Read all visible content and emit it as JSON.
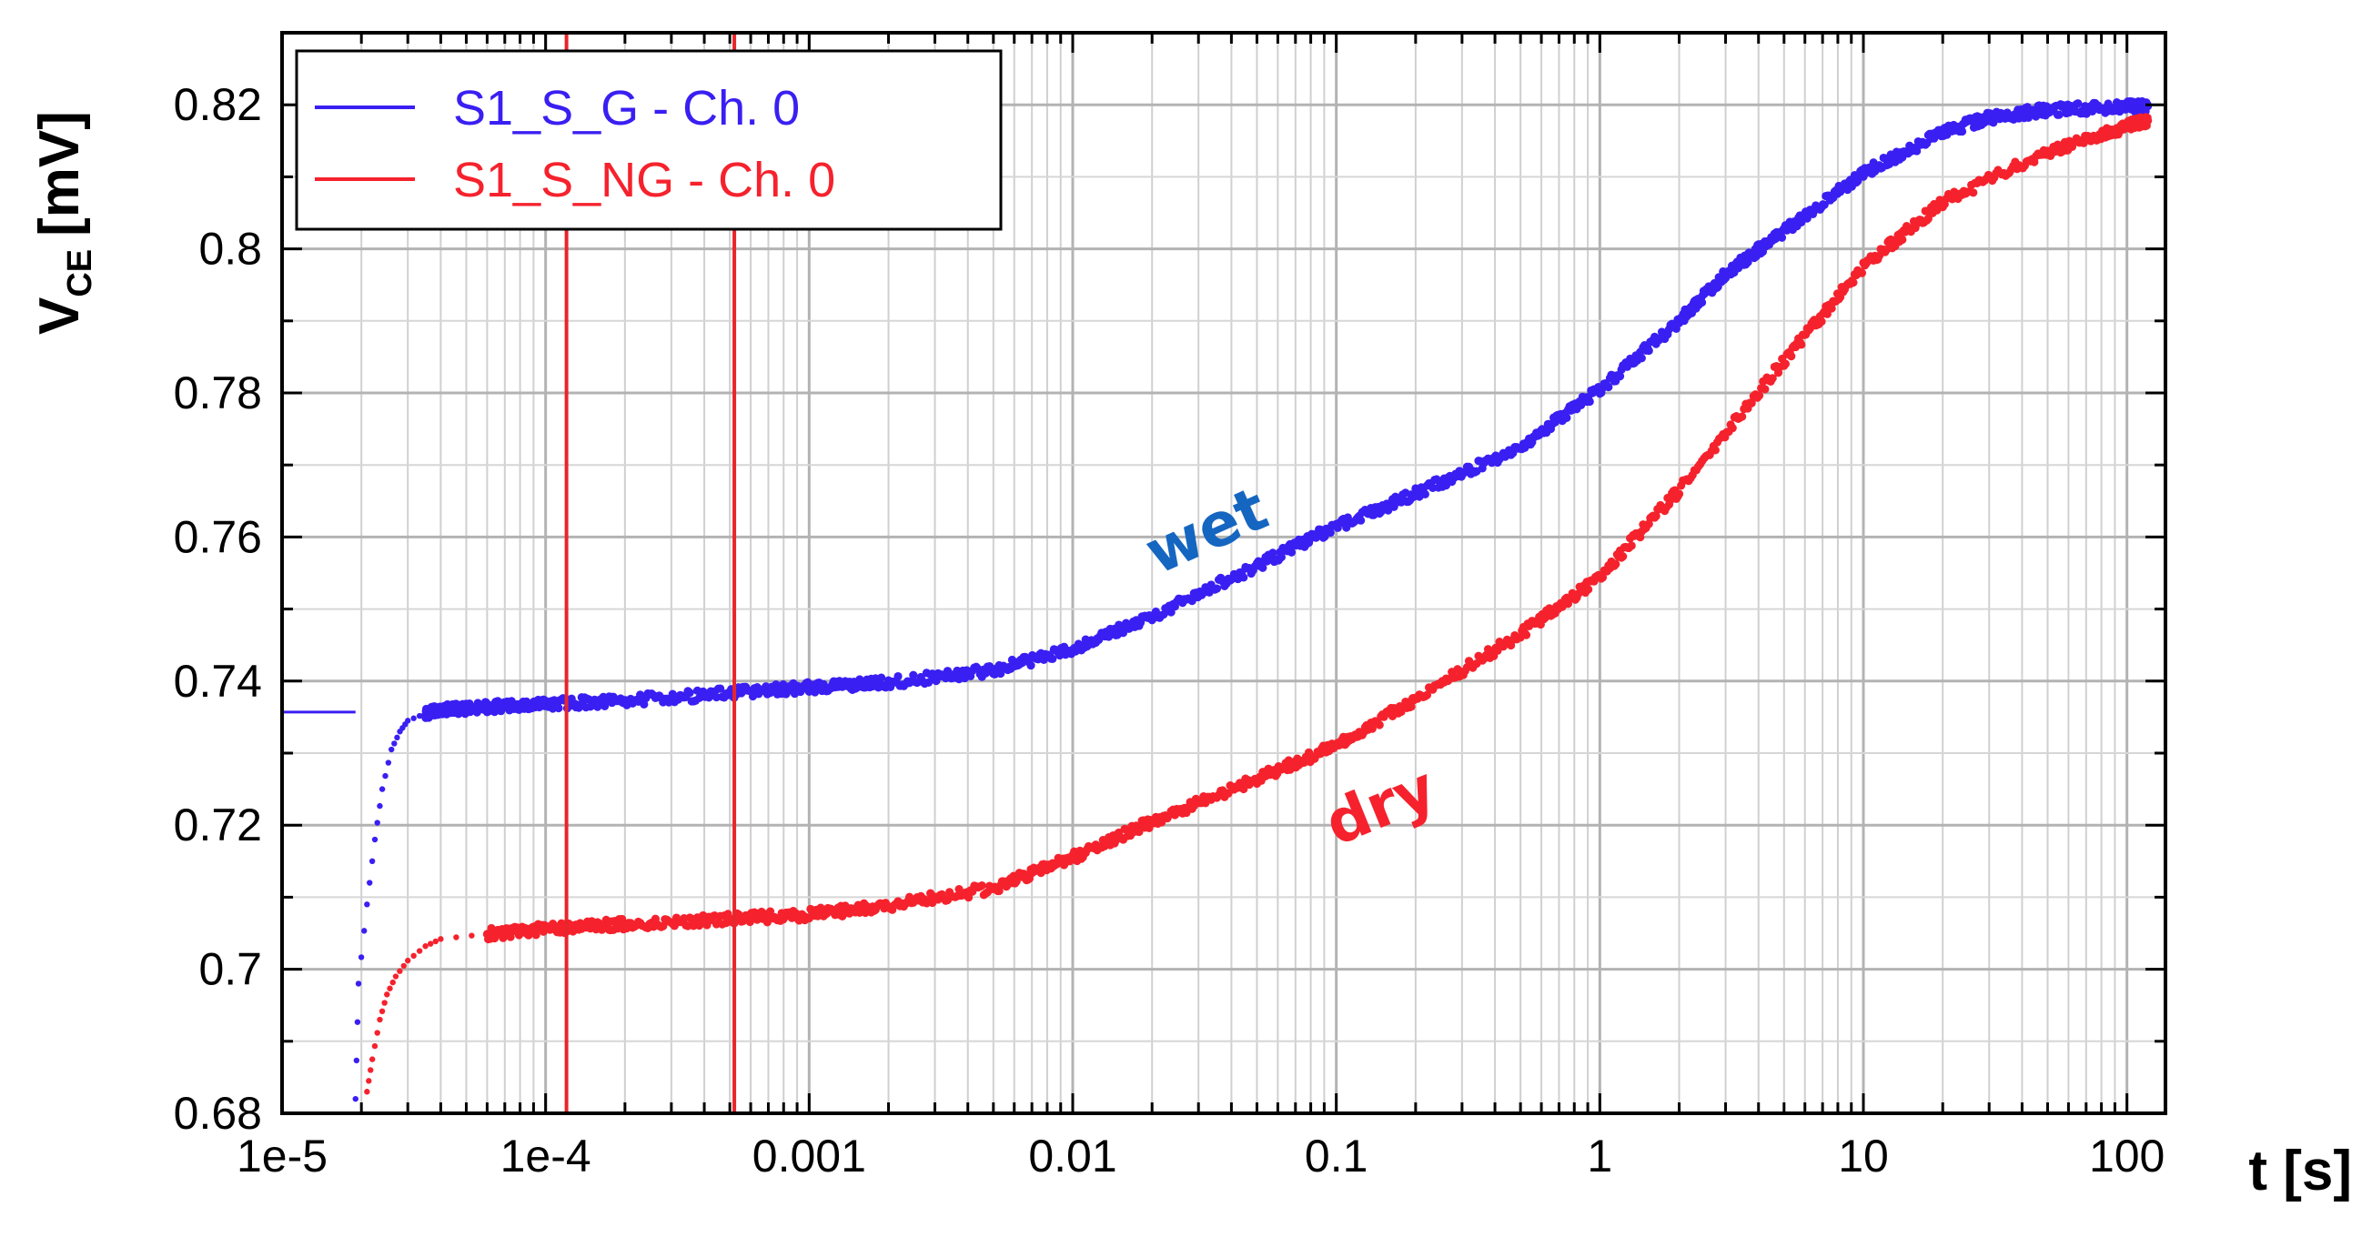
{
  "chart_data": {
    "type": "scatter",
    "title": "",
    "xlabel": "t [s]",
    "ylabel_main": "V",
    "ylabel_sub": "CE",
    "ylabel_unit": "[mV]",
    "x_scale": "log",
    "xlim": [
      1e-05,
      140
    ],
    "ylim": [
      0.68,
      0.83
    ],
    "grid": true,
    "legend_position": "top-left",
    "x_ticks": [
      {
        "value": 1e-05,
        "label": "1e-5"
      },
      {
        "value": 0.0001,
        "label": "1e-4"
      },
      {
        "value": 0.001,
        "label": "0.001"
      },
      {
        "value": 0.01,
        "label": "0.01"
      },
      {
        "value": 0.1,
        "label": "0.1"
      },
      {
        "value": 1,
        "label": "1"
      },
      {
        "value": 10,
        "label": "10"
      },
      {
        "value": 100,
        "label": "100"
      }
    ],
    "y_ticks": [
      {
        "value": 0.68,
        "label": "0.68"
      },
      {
        "value": 0.7,
        "label": "0.7"
      },
      {
        "value": 0.72,
        "label": "0.72"
      },
      {
        "value": 0.74,
        "label": "0.74"
      },
      {
        "value": 0.76,
        "label": "0.76"
      },
      {
        "value": 0.78,
        "label": "0.78"
      },
      {
        "value": 0.8,
        "label": "0.8"
      },
      {
        "value": 0.82,
        "label": "0.82"
      }
    ],
    "vertical_markers": [
      {
        "x": 0.00012,
        "color": "#e8262b"
      },
      {
        "x": 0.00052,
        "color": "#e8262b"
      }
    ],
    "series": [
      {
        "name": "S1_S_G - Ch. 0",
        "color": "#3a1ff2",
        "annotation": "wet",
        "annotation_color": "#1566c0",
        "flat_segment": {
          "x": [
            1e-05,
            1.9e-05
          ],
          "y": 0.7357
        },
        "points": [
          [
            1.9e-05,
            0.682
          ],
          [
            1.95e-05,
            0.698
          ],
          [
            2.1e-05,
            0.709
          ],
          [
            2.25e-05,
            0.718
          ],
          [
            2.4e-05,
            0.725
          ],
          [
            2.6e-05,
            0.7305
          ],
          [
            2.8e-05,
            0.733
          ],
          [
            3e-05,
            0.7345
          ],
          [
            3.5e-05,
            0.7355
          ],
          [
            4e-05,
            0.736
          ],
          [
            6e-05,
            0.7364
          ],
          [
            0.0001,
            0.7368
          ],
          [
            0.0002,
            0.7373
          ],
          [
            0.0005,
            0.7383
          ],
          [
            0.001,
            0.7391
          ],
          [
            0.002,
            0.7398
          ],
          [
            0.005,
            0.7415
          ],
          [
            0.01,
            0.7445
          ],
          [
            0.02,
            0.749
          ],
          [
            0.05,
            0.756
          ],
          [
            0.1,
            0.7615
          ],
          [
            0.2,
            0.766
          ],
          [
            0.5,
            0.7725
          ],
          [
            1,
            0.7805
          ],
          [
            2,
            0.79
          ],
          [
            3,
            0.7965
          ],
          [
            5,
            0.8025
          ],
          [
            10,
            0.8105
          ],
          [
            20,
            0.8162
          ],
          [
            30,
            0.8182
          ],
          [
            50,
            0.8193
          ],
          [
            100,
            0.8197
          ],
          [
            120,
            0.8198
          ]
        ]
      },
      {
        "name": "S1_S_NG - Ch. 0",
        "color": "#f5222d",
        "annotation": "dry",
        "annotation_color": "#f5222d",
        "flat_segment": null,
        "points": [
          [
            2.1e-05,
            0.683
          ],
          [
            2.2e-05,
            0.6875
          ],
          [
            2.35e-05,
            0.693
          ],
          [
            2.5e-05,
            0.6965
          ],
          [
            2.7e-05,
            0.699
          ],
          [
            3e-05,
            0.7012
          ],
          [
            3.5e-05,
            0.7032
          ],
          [
            4e-05,
            0.7042
          ],
          [
            6e-05,
            0.7049
          ],
          [
            0.0001,
            0.7056
          ],
          [
            0.0002,
            0.7063
          ],
          [
            0.0005,
            0.707
          ],
          [
            0.001,
            0.7076
          ],
          [
            0.002,
            0.7088
          ],
          [
            0.005,
            0.7113
          ],
          [
            0.01,
            0.7155
          ],
          [
            0.02,
            0.7205
          ],
          [
            0.05,
            0.7265
          ],
          [
            0.1,
            0.731
          ],
          [
            0.2,
            0.7375
          ],
          [
            0.5,
            0.7465
          ],
          [
            1,
            0.7545
          ],
          [
            2,
            0.7665
          ],
          [
            5,
            0.7845
          ],
          [
            10,
            0.7975
          ],
          [
            20,
            0.8065
          ],
          [
            50,
            0.8135
          ],
          [
            100,
            0.817
          ],
          [
            120,
            0.8178
          ]
        ]
      }
    ]
  }
}
